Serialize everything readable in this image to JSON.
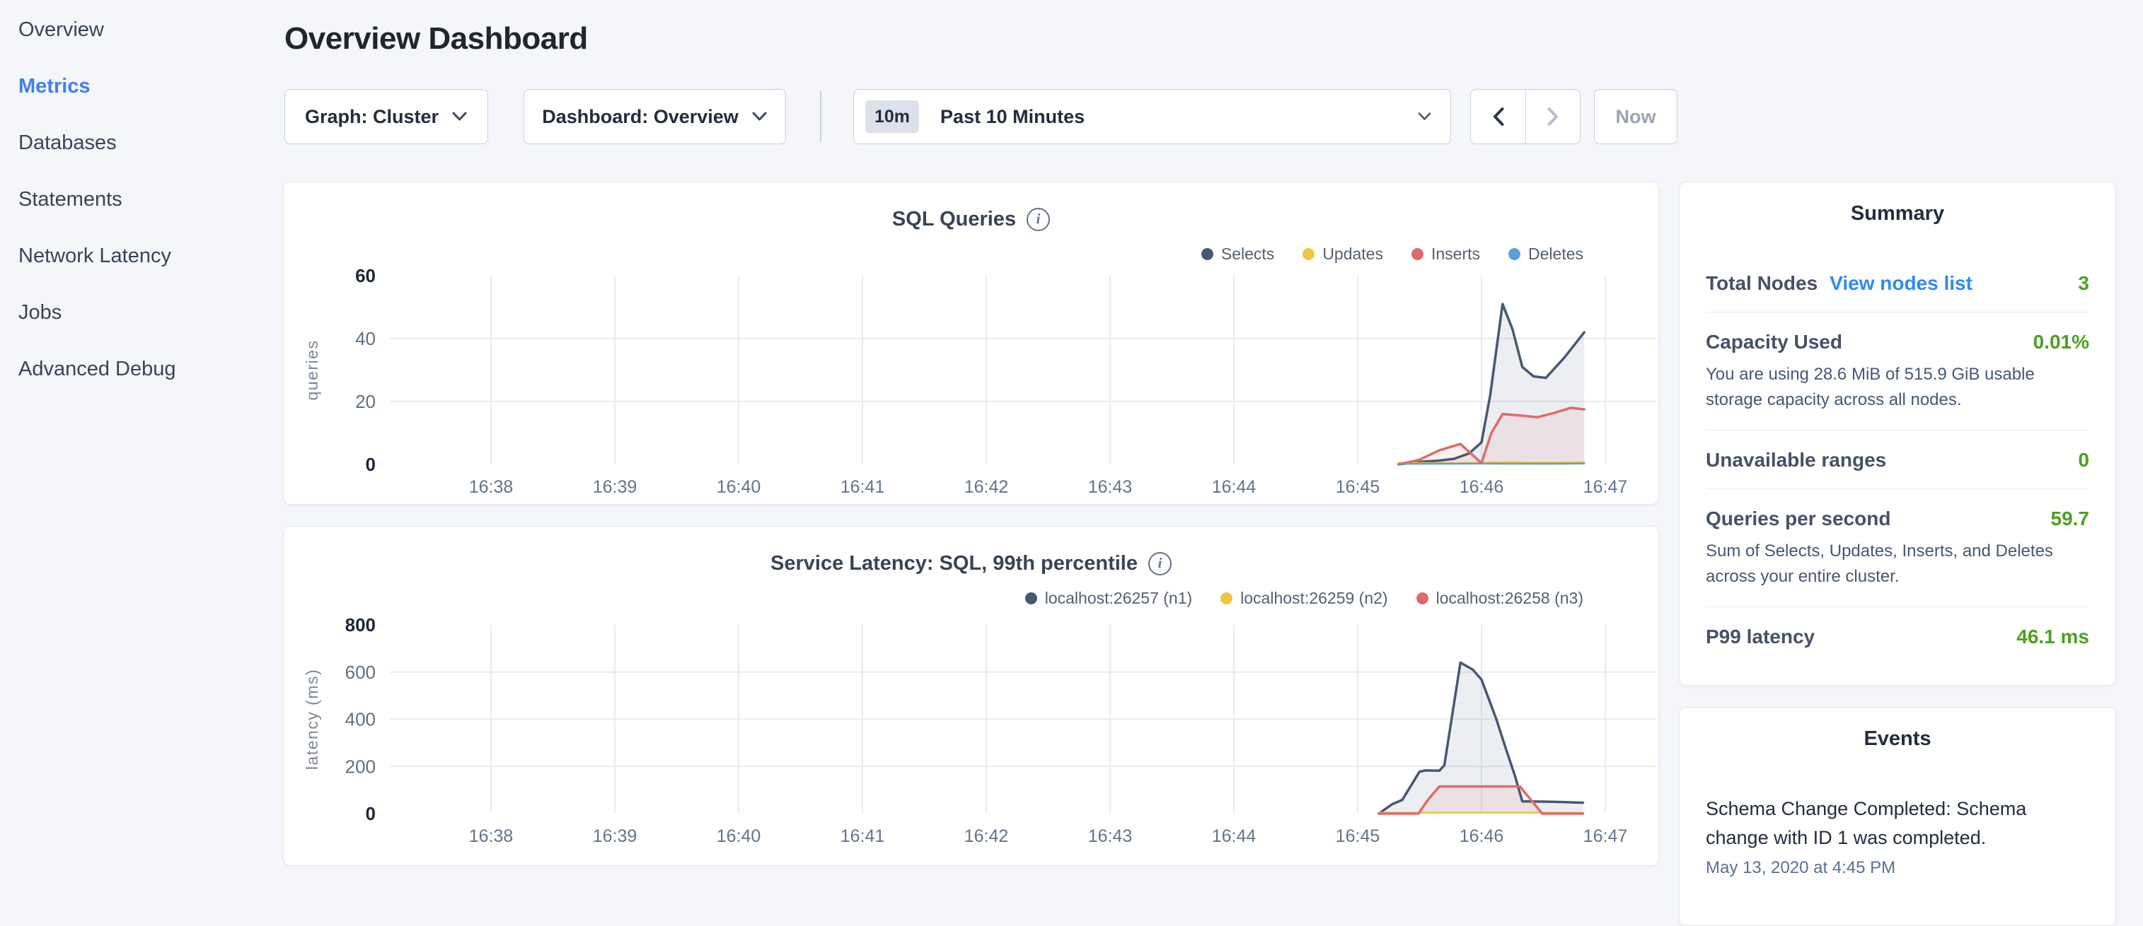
{
  "sidebar": {
    "items": [
      {
        "label": "Overview",
        "active": false
      },
      {
        "label": "Metrics",
        "active": true
      },
      {
        "label": "Databases",
        "active": false
      },
      {
        "label": "Statements",
        "active": false
      },
      {
        "label": "Network Latency",
        "active": false
      },
      {
        "label": "Jobs",
        "active": false
      },
      {
        "label": "Advanced Debug",
        "active": false
      }
    ]
  },
  "header": {
    "title": "Overview Dashboard"
  },
  "controls": {
    "graph_dropdown_label": "Graph: Cluster",
    "dashboard_dropdown_label": "Dashboard: Overview",
    "time_range_badge": "10m",
    "time_range_label": "Past 10 Minutes",
    "now_button_label": "Now"
  },
  "summary": {
    "title": "Summary",
    "rows": [
      {
        "label": "Total Nodes",
        "link": "View nodes list",
        "value": "3"
      },
      {
        "label": "Capacity Used",
        "value": "0.01%",
        "description": "You are using 28.6 MiB of 515.9 GiB usable storage capacity across all nodes."
      },
      {
        "label": "Unavailable ranges",
        "value": "0"
      },
      {
        "label": "Queries per second",
        "value": "59.7",
        "description": "Sum of Selects, Updates, Inserts, and Deletes across your entire cluster."
      },
      {
        "label": "P99 latency",
        "value": "46.1 ms"
      }
    ]
  },
  "events": {
    "title": "Events",
    "items": [
      {
        "message": "Schema Change Completed: Schema change with ID 1 was completed.",
        "timestamp": "May 13, 2020 at 4:45 PM"
      }
    ]
  },
  "colors": {
    "page_background": "#f4f6fa",
    "active_nav_blue": "#3b82ec",
    "link_blue": "#2e8af5",
    "value_green": "#4ca021",
    "series_navy": "#475872",
    "series_yellow": "#f0c53f",
    "series_red": "#dd6b6b",
    "series_blue": "#5b9fd6"
  },
  "chart_data": [
    {
      "type": "area",
      "title": "SQL Queries",
      "ylabel": "queries",
      "ylim": [
        0,
        60
      ],
      "y_ticks": [
        0,
        20,
        40,
        60
      ],
      "x_ticks": [
        {
          "m": 38,
          "label": "16:38"
        },
        {
          "m": 39,
          "label": "16:39"
        },
        {
          "m": 40,
          "label": "16:40"
        },
        {
          "m": 41,
          "label": "16:41"
        },
        {
          "m": 42,
          "label": "16:42"
        },
        {
          "m": 43,
          "label": "16:43"
        },
        {
          "m": 44,
          "label": "16:44"
        },
        {
          "m": 45,
          "label": "16:45"
        },
        {
          "m": 46,
          "label": "16:46"
        },
        {
          "m": 47,
          "label": "16:47"
        }
      ],
      "grid": true,
      "legend_position": "top-right",
      "series": [
        {
          "name": "Selects",
          "color": "#475872",
          "width": 3.5,
          "points": [
            [
              45.33,
              0
            ],
            [
              45.5,
              0.8
            ],
            [
              45.65,
              1.2
            ],
            [
              45.78,
              1.8
            ],
            [
              45.9,
              3.5
            ],
            [
              46.0,
              7
            ],
            [
              46.07,
              22
            ],
            [
              46.17,
              51
            ],
            [
              46.25,
              43
            ],
            [
              46.33,
              31
            ],
            [
              46.42,
              28
            ],
            [
              46.52,
              27.5
            ],
            [
              46.67,
              34
            ],
            [
              46.83,
              42
            ]
          ]
        },
        {
          "name": "Updates",
          "color": "#f0c53f",
          "width": 2.5,
          "points": [
            [
              45.33,
              0.5
            ],
            [
              45.8,
              0.4
            ],
            [
              46.2,
              0.7
            ],
            [
              46.5,
              0.6
            ],
            [
              46.83,
              0.7
            ]
          ]
        },
        {
          "name": "Inserts",
          "color": "#dd6b6b",
          "width": 3.5,
          "points": [
            [
              45.33,
              0
            ],
            [
              45.5,
              1.5
            ],
            [
              45.66,
              4.5
            ],
            [
              45.83,
              6.5
            ],
            [
              46.0,
              0.4
            ],
            [
              46.08,
              10
            ],
            [
              46.17,
              16
            ],
            [
              46.33,
              15.5
            ],
            [
              46.45,
              15
            ],
            [
              46.6,
              16.5
            ],
            [
              46.72,
              18
            ],
            [
              46.83,
              17.5
            ]
          ]
        },
        {
          "name": "Deletes",
          "color": "#5b9fd6",
          "width": 2.5,
          "points": [
            [
              45.33,
              0.2
            ],
            [
              46.0,
              0.25
            ],
            [
              46.5,
              0.2
            ],
            [
              46.83,
              0.3
            ]
          ]
        }
      ]
    },
    {
      "type": "area",
      "title": "Service Latency: SQL, 99th percentile",
      "ylabel": "latency (ms)",
      "ylim": [
        0,
        800
      ],
      "y_ticks": [
        0,
        200,
        400,
        600,
        800
      ],
      "x_ticks": [
        {
          "m": 38,
          "label": "16:38"
        },
        {
          "m": 39,
          "label": "16:39"
        },
        {
          "m": 40,
          "label": "16:40"
        },
        {
          "m": 41,
          "label": "16:41"
        },
        {
          "m": 42,
          "label": "16:42"
        },
        {
          "m": 43,
          "label": "16:43"
        },
        {
          "m": 44,
          "label": "16:44"
        },
        {
          "m": 45,
          "label": "16:45"
        },
        {
          "m": 46,
          "label": "16:46"
        },
        {
          "m": 47,
          "label": "16:47"
        }
      ],
      "grid": true,
      "legend_position": "top-right",
      "series": [
        {
          "name": "localhost:26257 (n1)",
          "color": "#475872",
          "width": 3.5,
          "points": [
            [
              45.17,
              0
            ],
            [
              45.28,
              40
            ],
            [
              45.36,
              58
            ],
            [
              45.5,
              178
            ],
            [
              45.55,
              183
            ],
            [
              45.66,
              182
            ],
            [
              45.7,
              205
            ],
            [
              45.83,
              640
            ],
            [
              45.93,
              610
            ],
            [
              46.0,
              568
            ],
            [
              46.12,
              400
            ],
            [
              46.2,
              270
            ],
            [
              46.27,
              160
            ],
            [
              46.33,
              52
            ],
            [
              46.5,
              51
            ],
            [
              46.65,
              49
            ],
            [
              46.82,
              46
            ]
          ]
        },
        {
          "name": "localhost:26259 (n2)",
          "color": "#f0c53f",
          "width": 2.5,
          "points": [
            [
              45.17,
              4
            ],
            [
              45.8,
              4
            ],
            [
              46.3,
              4
            ],
            [
              46.82,
              4
            ]
          ]
        },
        {
          "name": "localhost:26258 (n3)",
          "color": "#dd6b6b",
          "width": 3.5,
          "points": [
            [
              45.17,
              0
            ],
            [
              45.49,
              0
            ],
            [
              45.57,
              60
            ],
            [
              45.66,
              115
            ],
            [
              46.31,
              115
            ],
            [
              46.49,
              0
            ],
            [
              46.82,
              0
            ]
          ]
        }
      ]
    }
  ]
}
